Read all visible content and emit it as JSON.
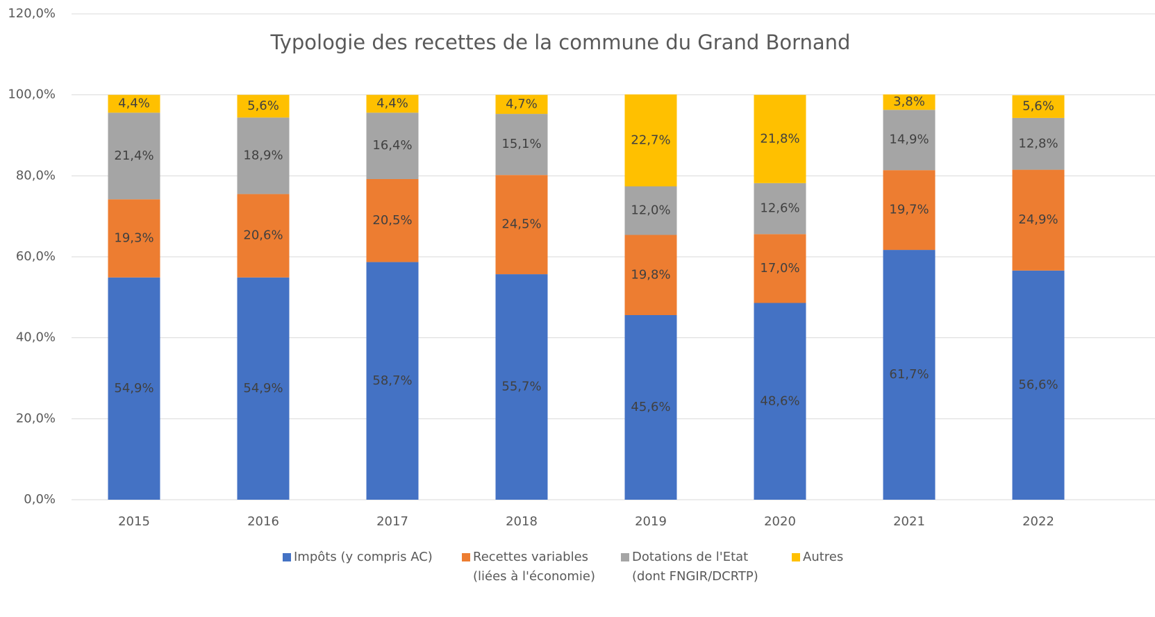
{
  "chart_data": {
    "type": "stacked_bar",
    "title": "Typologie des recettes de la commune du Grand Bornand",
    "categories": [
      "2015",
      "2016",
      "2017",
      "2018",
      "2019",
      "2020",
      "2021",
      "2022"
    ],
    "series": [
      {
        "name": "Impôts (y compris AC)",
        "color": "#4472c4",
        "values": [
          54.9,
          54.9,
          58.7,
          55.7,
          45.6,
          48.6,
          61.7,
          56.6
        ],
        "value_labels": [
          "54,9%",
          "54,9%",
          "58,7%",
          "55,7%",
          "45,6%",
          "48,6%",
          "61,7%",
          "56,6%"
        ]
      },
      {
        "name": "Recettes variables\n(liées à l'économie)",
        "color": "#ed7d31",
        "values": [
          19.3,
          20.6,
          20.5,
          24.5,
          19.8,
          17.0,
          19.7,
          24.9
        ],
        "value_labels": [
          "19,3%",
          "20,6%",
          "20,5%",
          "24,5%",
          "19,8%",
          "17,0%",
          "19,7%",
          "24,9%"
        ]
      },
      {
        "name": "Dotations de l'Etat\n(dont FNGIR/DCRTP)",
        "color": "#a5a5a5",
        "values": [
          21.4,
          18.9,
          16.4,
          15.1,
          12.0,
          12.6,
          14.9,
          12.8
        ],
        "value_labels": [
          "21,4%",
          "18,9%",
          "16,4%",
          "15,1%",
          "12,0%",
          "12,6%",
          "14,9%",
          "12,8%"
        ]
      },
      {
        "name": "Autres",
        "color": "#ffc000",
        "values": [
          4.4,
          5.6,
          4.4,
          4.7,
          22.7,
          21.8,
          3.8,
          5.6
        ],
        "value_labels": [
          "4,4%",
          "5,6%",
          "4,4%",
          "4,7%",
          "22,7%",
          "21,8%",
          "3,8%",
          "5,6%"
        ]
      }
    ],
    "ylim": [
      0,
      120
    ],
    "yticks": [
      {
        "value": 0,
        "label": "0,0%"
      },
      {
        "value": 20,
        "label": "20,0%"
      },
      {
        "value": 40,
        "label": "40,0%"
      },
      {
        "value": 60,
        "label": "60,0%"
      },
      {
        "value": 80,
        "label": "80,0%"
      },
      {
        "value": 100,
        "label": "100,0%"
      },
      {
        "value": 120,
        "label": "120,0%"
      }
    ],
    "grid": true,
    "legend": "bottom"
  }
}
